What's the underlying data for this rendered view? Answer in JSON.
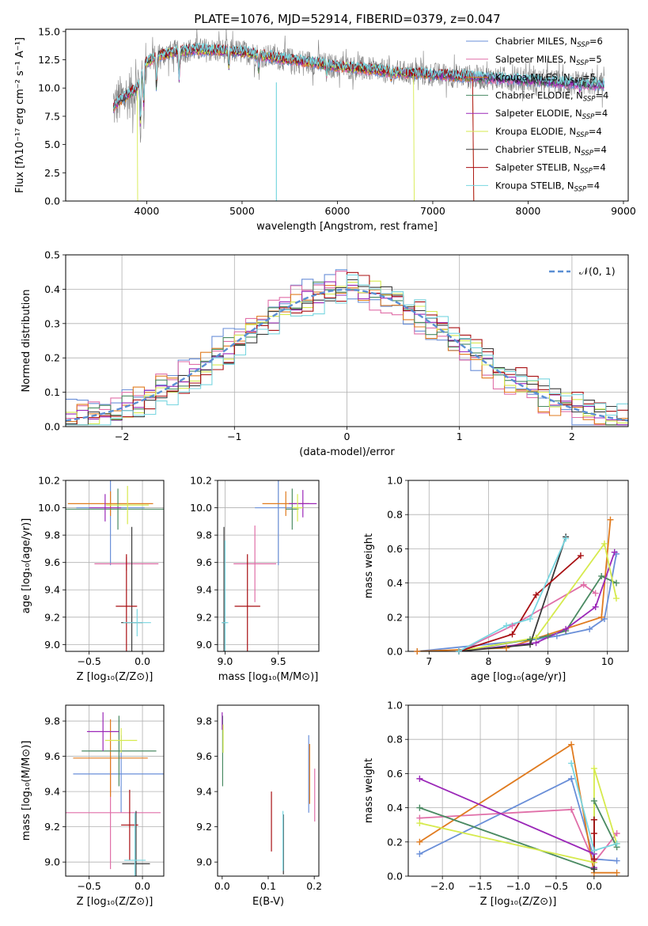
{
  "title": "PLATE=1076, MJD=52914, FIBERID=0379, z=0.047",
  "palette": {
    "chabrier_miles": "#6a8fd8",
    "salpeter_miles": "#e06fa8",
    "kroupa_miles": "#e07b1f",
    "chabrier_elodie": "#4a8a62",
    "salpeter_elodie": "#9b28b8",
    "kroupa_elodie": "#d6ea4d",
    "chabrier_stelib": "#3a3a3a",
    "salpeter_stelib": "#a80f12",
    "kroupa_stelib": "#78d6e0",
    "data": "#7f7f7f",
    "normal": "#5b8fd4"
  },
  "chart_data": [
    {
      "id": "spectrum",
      "type": "line",
      "xlabel": "wavelength [Angstrom, rest frame]",
      "ylabel": "Flux [fλ10⁻¹⁷ erg cm⁻² s⁻¹ A⁻¹]",
      "xlim": [
        3150,
        9050
      ],
      "ylim": [
        0,
        15.2
      ],
      "xticks": [
        "4000",
        "5000",
        "6000",
        "7000",
        "8000",
        "9000"
      ],
      "yticks": [
        "0.0",
        "2.5",
        "5.0",
        "7.5",
        "10.0",
        "12.5",
        "15.0"
      ],
      "continuum": {
        "x": [
          3650,
          3700,
          3800,
          3900,
          3950,
          4000,
          4100,
          4300,
          4500,
          4800,
          5000,
          5200,
          5500,
          5800,
          6000,
          6300,
          6600,
          7000,
          7400,
          7800,
          8200,
          8500,
          8800
        ],
        "y": [
          8.3,
          8.8,
          9.4,
          10.0,
          11.2,
          12.3,
          12.8,
          13.2,
          13.4,
          13.3,
          13.2,
          12.9,
          12.5,
          12.2,
          11.9,
          11.7,
          11.4,
          11.2,
          11.0,
          10.8,
          10.6,
          10.4,
          10.3
        ]
      },
      "legend": [
        {
          "label": "Chabrier MILES, N",
          "sub": "SSP",
          "tail": "=6",
          "color_key": "chabrier_miles"
        },
        {
          "label": "Salpeter MILES, N",
          "sub": "SSP",
          "tail": "=5",
          "color_key": "salpeter_miles"
        },
        {
          "label": "Kroupa MILES, N",
          "sub": "SSP",
          "tail": "=5",
          "color_key": "kroupa_miles"
        },
        {
          "label": "Chabrier ELODIE, N",
          "sub": "SSP",
          "tail": "=4",
          "color_key": "chabrier_elodie"
        },
        {
          "label": "Salpeter ELODIE, N",
          "sub": "SSP",
          "tail": "=4",
          "color_key": "salpeter_elodie"
        },
        {
          "label": "Kroupa ELODIE, N",
          "sub": "SSP",
          "tail": "=4",
          "color_key": "kroupa_elodie"
        },
        {
          "label": "Chabrier STELIB, N",
          "sub": "SSP",
          "tail": "=4",
          "color_key": "chabrier_stelib"
        },
        {
          "label": "Salpeter STELIB, N",
          "sub": "SSP",
          "tail": "=4",
          "color_key": "salpeter_stelib"
        },
        {
          "label": "Kroupa STELIB, N",
          "sub": "SSP",
          "tail": "=4",
          "color_key": "kroupa_stelib"
        }
      ],
      "legend_position": "upper right",
      "grid": false
    },
    {
      "id": "residuals",
      "type": "line",
      "xlabel": "(data-model)/error",
      "ylabel": "Normed distribution",
      "xlim": [
        -2.5,
        2.5
      ],
      "ylim": [
        0,
        0.5
      ],
      "xticks": [
        "−2",
        "−1",
        "0",
        "1",
        "2"
      ],
      "yticks": [
        "0.0",
        "0.1",
        "0.2",
        "0.3",
        "0.4",
        "0.5"
      ],
      "bin_width": 0.1,
      "series_note": "nine histograms around a normal curve",
      "reference": {
        "label": "𝒩(0, 1)",
        "mean": 0,
        "sigma": 1
      },
      "legend_position": "upper right",
      "grid": true
    },
    {
      "id": "age_vs_z",
      "type": "scatter",
      "xlabel": "Z [log₁₀(Z/Z⊙)]",
      "ylabel": "age  [log₁₀(age/yr)]",
      "xlim": [
        -0.72,
        0.2
      ],
      "ylim": [
        8.95,
        10.2
      ],
      "xticks": [
        "−0.5",
        "0.0"
      ],
      "yticks": [
        "9.0",
        "9.2",
        "9.4",
        "9.6",
        "9.8",
        "10.0",
        "10.2"
      ],
      "points": [
        {
          "x": -0.3,
          "y": 10.0,
          "xerr": 0.32,
          "yerr": 0.42,
          "color_key": "chabrier_miles"
        },
        {
          "x": -0.15,
          "y": 9.59,
          "xerr": 0.3,
          "yerr": 0.05,
          "color_key": "salpeter_miles"
        },
        {
          "x": -0.3,
          "y": 10.03,
          "xerr": 0.4,
          "yerr": 0.09,
          "color_key": "kroupa_miles"
        },
        {
          "x": -0.23,
          "y": 9.99,
          "xerr": 0.5,
          "yerr": 0.15,
          "color_key": "chabrier_elodie"
        },
        {
          "x": -0.35,
          "y": 10.0,
          "xerr": 0.15,
          "yerr": 0.1,
          "color_key": "salpeter_elodie"
        },
        {
          "x": -0.14,
          "y": 10.02,
          "xerr": 0.2,
          "yerr": 0.14,
          "color_key": "kroupa_elodie"
        },
        {
          "x": -0.1,
          "y": 9.16,
          "xerr": 0.1,
          "yerr": 0.7,
          "color_key": "chabrier_stelib"
        },
        {
          "x": -0.15,
          "y": 9.28,
          "xerr": 0.1,
          "yerr": 0.38,
          "color_key": "salpeter_stelib"
        },
        {
          "x": -0.05,
          "y": 9.16,
          "xerr": 0.13,
          "yerr": 0.1,
          "color_key": "kroupa_stelib"
        }
      ],
      "grid": true
    },
    {
      "id": "age_vs_mass",
      "type": "scatter",
      "xlabel": "mass [log₁₀(M/M⊙)]",
      "ylabel": "",
      "xlim": [
        8.93,
        9.88
      ],
      "ylim": [
        8.95,
        10.2
      ],
      "xticks": [
        "9.0",
        "9.5"
      ],
      "yticks": [
        "9.0",
        "9.2",
        "9.4",
        "9.6",
        "9.8",
        "10.0",
        "10.2"
      ],
      "points": [
        {
          "x": 9.5,
          "y": 10.0,
          "xerr": 0.22,
          "yerr": 0.42,
          "color_key": "chabrier_miles"
        },
        {
          "x": 9.28,
          "y": 9.59,
          "xerr": 0.2,
          "yerr": 0.28,
          "color_key": "salpeter_miles"
        },
        {
          "x": 9.57,
          "y": 10.03,
          "xerr": 0.22,
          "yerr": 0.09,
          "color_key": "kroupa_miles"
        },
        {
          "x": 9.63,
          "y": 9.99,
          "xerr": 0.06,
          "yerr": 0.15,
          "color_key": "chabrier_elodie"
        },
        {
          "x": 9.73,
          "y": 10.03,
          "xerr": 0.13,
          "yerr": 0.1,
          "color_key": "salpeter_elodie"
        },
        {
          "x": 9.68,
          "y": 10.0,
          "xerr": 0.05,
          "yerr": 0.1,
          "color_key": "kroupa_elodie"
        },
        {
          "x": 8.99,
          "y": 9.16,
          "xerr": 0.02,
          "yerr": 0.7,
          "color_key": "chabrier_stelib"
        },
        {
          "x": 9.21,
          "y": 9.28,
          "xerr": 0.12,
          "yerr": 0.38,
          "color_key": "salpeter_stelib"
        },
        {
          "x": 9.0,
          "y": 9.16,
          "xerr": 0.03,
          "yerr": 0.6,
          "color_key": "kroupa_stelib"
        }
      ],
      "grid": true
    },
    {
      "id": "weight_vs_age",
      "type": "line",
      "xlabel": "age  [log₁₀(age/yr)]",
      "ylabel": "mass weight",
      "xlim": [
        6.65,
        10.35
      ],
      "ylim": [
        0,
        1.0
      ],
      "xticks": [
        "7",
        "8",
        "9",
        "10"
      ],
      "yticks": [
        "0.0",
        "0.2",
        "0.4",
        "0.6",
        "0.8",
        "1.0"
      ],
      "series": [
        {
          "color_key": "chabrier_miles",
          "x": [
            6.8,
            8.8,
            9.15,
            9.7,
            9.95,
            10.15
          ],
          "y": [
            0.0,
            0.07,
            0.09,
            0.13,
            0.19,
            0.57
          ]
        },
        {
          "color_key": "salpeter_miles",
          "x": [
            7.5,
            8.4,
            9.6,
            9.8
          ],
          "y": [
            0.0,
            0.15,
            0.39,
            0.34
          ]
        },
        {
          "color_key": "kroupa_miles",
          "x": [
            6.8,
            8.3,
            9.9,
            10.05
          ],
          "y": [
            0.0,
            0.02,
            0.2,
            0.77
          ]
        },
        {
          "color_key": "chabrier_elodie",
          "x": [
            7.5,
            8.7,
            9.0,
            9.3,
            9.9,
            10.15
          ],
          "y": [
            0.0,
            0.07,
            0.09,
            0.12,
            0.44,
            0.4
          ]
        },
        {
          "color_key": "salpeter_elodie",
          "x": [
            7.5,
            8.8,
            9.3,
            9.8,
            10.12
          ],
          "y": [
            0.0,
            0.05,
            0.13,
            0.26,
            0.58
          ]
        },
        {
          "color_key": "kroupa_elodie",
          "x": [
            7.5,
            8.8,
            9.95,
            10.15
          ],
          "y": [
            0.0,
            0.08,
            0.63,
            0.31
          ]
        },
        {
          "color_key": "chabrier_stelib",
          "x": [
            7.5,
            8.7,
            9.3
          ],
          "y": [
            0.0,
            0.04,
            0.67
          ]
        },
        {
          "color_key": "salpeter_stelib",
          "x": [
            7.5,
            8.4,
            8.8,
            9.55
          ],
          "y": [
            0.0,
            0.1,
            0.33,
            0.56
          ]
        },
        {
          "color_key": "kroupa_stelib",
          "x": [
            7.5,
            8.3,
            8.7,
            9.3
          ],
          "y": [
            0.0,
            0.15,
            0.19,
            0.66
          ]
        }
      ],
      "grid": true
    },
    {
      "id": "mass_vs_z",
      "type": "scatter",
      "xlabel": "Z [log₁₀(Z/Z⊙)]",
      "ylabel": "mass [log₁₀(M/M⊙)]",
      "xlim": [
        -0.72,
        0.2
      ],
      "ylim": [
        8.92,
        9.89
      ],
      "xticks": [
        "−0.5",
        "0.0"
      ],
      "yticks": [
        "9.0",
        "9.2",
        "9.4",
        "9.6",
        "9.8"
      ],
      "points": [
        {
          "x": -0.2,
          "y": 9.5,
          "xerr": 0.45,
          "yerr": 0.22,
          "color_key": "chabrier_miles"
        },
        {
          "x": -0.3,
          "y": 9.28,
          "xerr": 0.47,
          "yerr": 0.32,
          "color_key": "salpeter_miles"
        },
        {
          "x": -0.3,
          "y": 9.59,
          "xerr": 0.35,
          "yerr": 0.22,
          "color_key": "kroupa_miles"
        },
        {
          "x": -0.22,
          "y": 9.63,
          "xerr": 0.35,
          "yerr": 0.2,
          "color_key": "chabrier_elodie"
        },
        {
          "x": -0.37,
          "y": 9.74,
          "xerr": 0.15,
          "yerr": 0.11,
          "color_key": "salpeter_elodie"
        },
        {
          "x": -0.2,
          "y": 9.69,
          "xerr": 0.15,
          "yerr": 0.07,
          "color_key": "kroupa_elodie"
        },
        {
          "x": -0.06,
          "y": 8.99,
          "xerr": 0.13,
          "yerr": 0.3,
          "color_key": "chabrier_stelib"
        },
        {
          "x": -0.12,
          "y": 9.21,
          "xerr": 0.08,
          "yerr": 0.2,
          "color_key": "salpeter_stelib"
        },
        {
          "x": -0.07,
          "y": 9.01,
          "xerr": 0.1,
          "yerr": 0.27,
          "color_key": "kroupa_stelib"
        }
      ],
      "grid": true
    },
    {
      "id": "mass_vs_ebv",
      "type": "scatter",
      "xlabel": "E(B-V)",
      "ylabel": "",
      "xlim": [
        -0.01,
        0.21
      ],
      "ylim": [
        8.92,
        9.89
      ],
      "xticks": [
        "0.0",
        "0.1",
        "0.2"
      ],
      "yticks": [
        "9.0",
        "9.2",
        "9.4",
        "9.6",
        "9.8"
      ],
      "points": [
        {
          "x": 0.188,
          "y": 9.5,
          "yerr": 0.22,
          "color_key": "chabrier_miles"
        },
        {
          "x": 0.201,
          "y": 9.38,
          "yerr": 0.15,
          "color_key": "salpeter_miles"
        },
        {
          "x": 0.19,
          "y": 9.5,
          "yerr": 0.17,
          "color_key": "kroupa_miles"
        },
        {
          "x": 0.001,
          "y": 9.63,
          "yerr": 0.2,
          "color_key": "chabrier_elodie"
        },
        {
          "x": 0.0,
          "y": 9.8,
          "yerr": 0.05,
          "color_key": "salpeter_elodie"
        },
        {
          "x": 0.002,
          "y": 9.7,
          "yerr": 0.08,
          "color_key": "kroupa_elodie"
        },
        {
          "x": 0.133,
          "y": 9.1,
          "yerr": 0.17,
          "color_key": "chabrier_stelib"
        },
        {
          "x": 0.107,
          "y": 9.23,
          "yerr": 0.17,
          "color_key": "salpeter_stelib"
        },
        {
          "x": 0.132,
          "y": 9.12,
          "yerr": 0.17,
          "color_key": "kroupa_stelib"
        }
      ],
      "grid": false
    },
    {
      "id": "weight_vs_z",
      "type": "line",
      "xlabel": "Z [log₁₀(Z/Z⊙)]",
      "ylabel": "mass weight",
      "xlim": [
        -2.45,
        0.45
      ],
      "ylim": [
        0,
        1.0
      ],
      "xticks": [
        "−2.0",
        "−1.5",
        "−1.0",
        "−0.5",
        "0.0"
      ],
      "yticks": [
        "0.0",
        "0.2",
        "0.4",
        "0.6",
        "0.8",
        "1.0"
      ],
      "series": [
        {
          "color_key": "chabrier_miles",
          "x": [
            -2.3,
            -0.3,
            0.0,
            0.3
          ],
          "y": [
            0.13,
            0.57,
            0.1,
            0.09
          ]
        },
        {
          "color_key": "salpeter_miles",
          "x": [
            -2.3,
            -0.3,
            0.0,
            0.3
          ],
          "y": [
            0.34,
            0.39,
            0.08,
            0.25
          ]
        },
        {
          "color_key": "kroupa_miles",
          "x": [
            -2.3,
            -0.3,
            0.0,
            0.3
          ],
          "y": [
            0.2,
            0.77,
            0.02,
            0.02
          ]
        },
        {
          "color_key": "chabrier_elodie",
          "x": [
            -2.3,
            0.0,
            0.0,
            0.3
          ],
          "y": [
            0.4,
            0.04,
            0.44,
            0.17
          ]
        },
        {
          "color_key": "salpeter_elodie",
          "x": [
            -2.3,
            0.0,
            0.0
          ],
          "y": [
            0.57,
            0.13,
            0.05
          ]
        },
        {
          "color_key": "kroupa_elodie",
          "x": [
            -2.3,
            0.0,
            0.0,
            0.3
          ],
          "y": [
            0.31,
            0.08,
            0.63,
            0.19
          ]
        },
        {
          "color_key": "chabrier_stelib",
          "x": [
            0.0,
            0.0
          ],
          "y": [
            0.04,
            0.33
          ]
        },
        {
          "color_key": "salpeter_stelib",
          "x": [
            0.0,
            0.0,
            0.0
          ],
          "y": [
            0.1,
            0.33,
            0.25
          ]
        },
        {
          "color_key": "kroupa_stelib",
          "x": [
            -0.3,
            0.0,
            0.3
          ],
          "y": [
            0.66,
            0.15,
            0.19
          ]
        }
      ],
      "grid": true
    }
  ]
}
